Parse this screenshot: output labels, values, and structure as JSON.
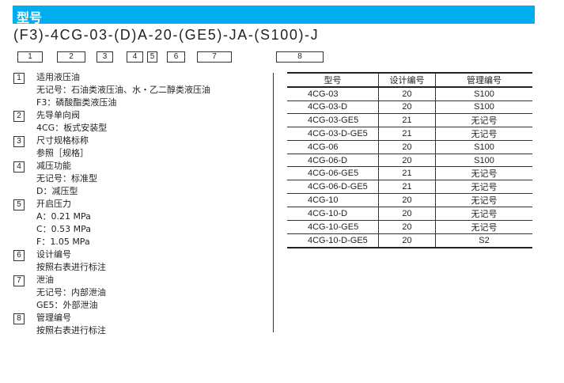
{
  "header": {
    "title": "型号"
  },
  "model_code": "(F3)-4CG-03-(D)A-20-(GE5)-JA-(S100)-J",
  "position_boxes": [
    "1",
    "2",
    "3",
    "4",
    "5",
    "6",
    "7",
    "8"
  ],
  "items": [
    {
      "num": "1",
      "title": "适用液压油",
      "lines": [
        "无记号：石油类液压油、水・乙二醇类液压油",
        "F3：磷酸酯类液压油"
      ]
    },
    {
      "num": "2",
      "title": "先导单向阀",
      "lines": [
        "4CG：板式安装型"
      ]
    },
    {
      "num": "3",
      "title": "尺寸规格标称",
      "lines": [
        "参照［规格］"
      ]
    },
    {
      "num": "4",
      "title": "减压功能",
      "lines": [
        "无记号：标准型",
        "D：减压型"
      ]
    },
    {
      "num": "5",
      "title": "开启压力",
      "lines": [
        "A：0.21 MPa",
        "C：0.53 MPa",
        "F：1.05 MPa"
      ]
    },
    {
      "num": "6",
      "title": "设计编号",
      "lines": [
        "按照右表进行标注"
      ]
    },
    {
      "num": "7",
      "title": "泄油",
      "lines": [
        "无记号：内部泄油",
        "GE5：外部泄油"
      ]
    },
    {
      "num": "8",
      "title": "管理编号",
      "lines": [
        "按照右表进行标注"
      ]
    }
  ],
  "table": {
    "headers": [
      "型号",
      "设计编号",
      "管理编号"
    ],
    "rows": [
      [
        "4CG-03",
        "20",
        "S100"
      ],
      [
        "4CG-03-D",
        "20",
        "S100"
      ],
      [
        "4CG-03-GE5",
        "21",
        "无记号"
      ],
      [
        "4CG-03-D-GE5",
        "21",
        "无记号"
      ],
      [
        "4CG-06",
        "20",
        "S100"
      ],
      [
        "4CG-06-D",
        "20",
        "S100"
      ],
      [
        "4CG-06-GE5",
        "21",
        "无记号"
      ],
      [
        "4CG-06-D-GE5",
        "21",
        "无记号"
      ],
      [
        "4CG-10",
        "20",
        "无记号"
      ],
      [
        "4CG-10-D",
        "20",
        "无记号"
      ],
      [
        "4CG-10-GE5",
        "20",
        "无记号"
      ],
      [
        "4CG-10-D-GE5",
        "20",
        "S2"
      ]
    ]
  }
}
